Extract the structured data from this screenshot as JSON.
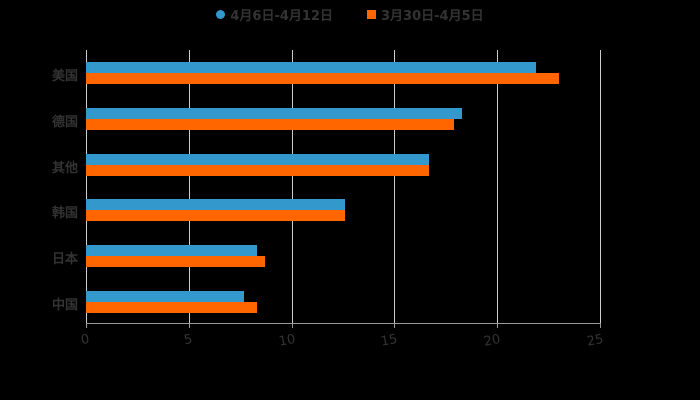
{
  "chart_data": {
    "type": "bar",
    "orientation": "horizontal",
    "title": "",
    "categories": [
      "美国",
      "德国",
      "其他",
      "韩国",
      "日本",
      "中国"
    ],
    "series": [
      {
        "name": "4月6日-4月12日",
        "color": "#3399cc",
        "values": [
          21.9,
          18.3,
          16.7,
          12.6,
          8.3,
          7.7
        ]
      },
      {
        "name": "3月30日-4月5日",
        "color": "#ff6600",
        "values": [
          23.0,
          17.9,
          16.7,
          12.6,
          8.7,
          8.3
        ]
      }
    ],
    "xlabel": "",
    "ylabel": "",
    "xlim": [
      0,
      25
    ],
    "xticks": [
      "0",
      "5",
      "10",
      "15",
      "20",
      "25"
    ],
    "grid": true,
    "legend_position": "top"
  },
  "legend": {
    "items": [
      {
        "label": "4月6日-4月12日",
        "color": "#3399cc"
      },
      {
        "label": "3月30日-4月5日",
        "color": "#ff6600"
      }
    ]
  }
}
